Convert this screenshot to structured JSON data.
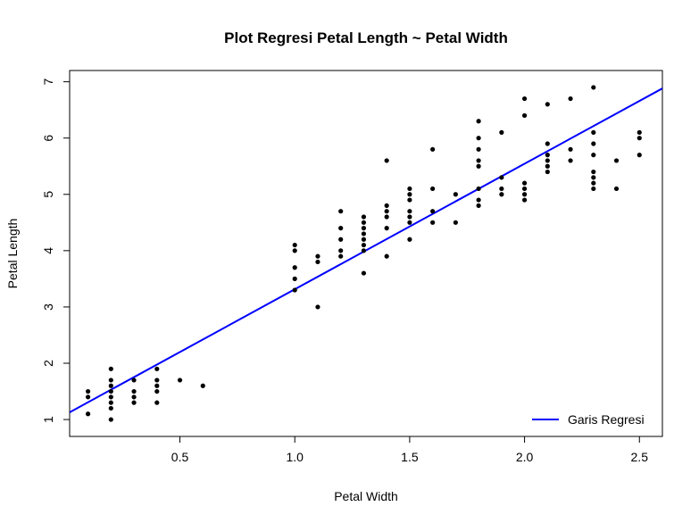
{
  "chart_data": {
    "type": "scatter",
    "title": "Plot Regresi Petal Length ~ Petal Width",
    "xlabel": "Petal Width",
    "ylabel": "Petal Length",
    "xlim": [
      0.02,
      2.6
    ],
    "ylim": [
      0.7,
      7.2
    ],
    "x_ticks": [
      0.5,
      1.0,
      1.5,
      2.0,
      2.5
    ],
    "x_tick_labels": [
      "0.5",
      "1.0",
      "1.5",
      "2.0",
      "2.5"
    ],
    "y_ticks": [
      1,
      2,
      3,
      4,
      5,
      6,
      7
    ],
    "y_tick_labels": [
      "1",
      "2",
      "3",
      "4",
      "5",
      "6",
      "7"
    ],
    "grid": false,
    "legend_position": "bottom-right",
    "points": [
      [
        0.1,
        1.1
      ],
      [
        0.1,
        1.4
      ],
      [
        0.1,
        1.5
      ],
      [
        0.2,
        1.0
      ],
      [
        0.2,
        1.2
      ],
      [
        0.2,
        1.3
      ],
      [
        0.2,
        1.4
      ],
      [
        0.2,
        1.5
      ],
      [
        0.2,
        1.6
      ],
      [
        0.2,
        1.7
      ],
      [
        0.2,
        1.9
      ],
      [
        0.3,
        1.3
      ],
      [
        0.3,
        1.4
      ],
      [
        0.3,
        1.5
      ],
      [
        0.3,
        1.7
      ],
      [
        0.4,
        1.3
      ],
      [
        0.4,
        1.5
      ],
      [
        0.4,
        1.6
      ],
      [
        0.4,
        1.7
      ],
      [
        0.4,
        1.9
      ],
      [
        0.5,
        1.7
      ],
      [
        0.6,
        1.6
      ],
      [
        1.0,
        3.3
      ],
      [
        1.0,
        3.5
      ],
      [
        1.0,
        3.7
      ],
      [
        1.0,
        4.0
      ],
      [
        1.0,
        4.1
      ],
      [
        1.1,
        3.0
      ],
      [
        1.1,
        3.8
      ],
      [
        1.1,
        3.9
      ],
      [
        1.2,
        3.9
      ],
      [
        1.2,
        4.0
      ],
      [
        1.2,
        4.2
      ],
      [
        1.2,
        4.4
      ],
      [
        1.2,
        4.7
      ],
      [
        1.3,
        3.6
      ],
      [
        1.3,
        4.0
      ],
      [
        1.3,
        4.1
      ],
      [
        1.3,
        4.2
      ],
      [
        1.3,
        4.3
      ],
      [
        1.3,
        4.4
      ],
      [
        1.3,
        4.5
      ],
      [
        1.3,
        4.6
      ],
      [
        1.4,
        3.9
      ],
      [
        1.4,
        4.4
      ],
      [
        1.4,
        4.6
      ],
      [
        1.4,
        4.7
      ],
      [
        1.4,
        4.8
      ],
      [
        1.4,
        5.6
      ],
      [
        1.5,
        4.2
      ],
      [
        1.5,
        4.5
      ],
      [
        1.5,
        4.6
      ],
      [
        1.5,
        4.7
      ],
      [
        1.5,
        4.9
      ],
      [
        1.5,
        5.0
      ],
      [
        1.5,
        5.1
      ],
      [
        1.6,
        4.5
      ],
      [
        1.6,
        4.7
      ],
      [
        1.6,
        5.1
      ],
      [
        1.6,
        5.8
      ],
      [
        1.7,
        4.5
      ],
      [
        1.7,
        5.0
      ],
      [
        1.8,
        4.8
      ],
      [
        1.8,
        4.9
      ],
      [
        1.8,
        5.1
      ],
      [
        1.8,
        5.5
      ],
      [
        1.8,
        5.6
      ],
      [
        1.8,
        5.8
      ],
      [
        1.8,
        6.0
      ],
      [
        1.8,
        6.3
      ],
      [
        1.9,
        5.0
      ],
      [
        1.9,
        5.1
      ],
      [
        1.9,
        5.3
      ],
      [
        1.9,
        6.1
      ],
      [
        2.0,
        4.9
      ],
      [
        2.0,
        5.0
      ],
      [
        2.0,
        5.1
      ],
      [
        2.0,
        5.2
      ],
      [
        2.0,
        6.4
      ],
      [
        2.0,
        6.7
      ],
      [
        2.1,
        5.4
      ],
      [
        2.1,
        5.5
      ],
      [
        2.1,
        5.6
      ],
      [
        2.1,
        5.7
      ],
      [
        2.1,
        5.9
      ],
      [
        2.1,
        6.6
      ],
      [
        2.2,
        5.6
      ],
      [
        2.2,
        5.8
      ],
      [
        2.2,
        6.7
      ],
      [
        2.3,
        5.1
      ],
      [
        2.3,
        5.2
      ],
      [
        2.3,
        5.3
      ],
      [
        2.3,
        5.4
      ],
      [
        2.3,
        5.7
      ],
      [
        2.3,
        5.9
      ],
      [
        2.3,
        6.1
      ],
      [
        2.3,
        6.9
      ],
      [
        2.4,
        5.1
      ],
      [
        2.4,
        5.6
      ],
      [
        2.5,
        5.7
      ],
      [
        2.5,
        6.0
      ],
      [
        2.5,
        6.1
      ]
    ],
    "regression": {
      "intercept": 1.084,
      "slope": 2.23,
      "name": "Garis Regresi",
      "color": "#0000ff"
    },
    "point_color": "#000000"
  }
}
